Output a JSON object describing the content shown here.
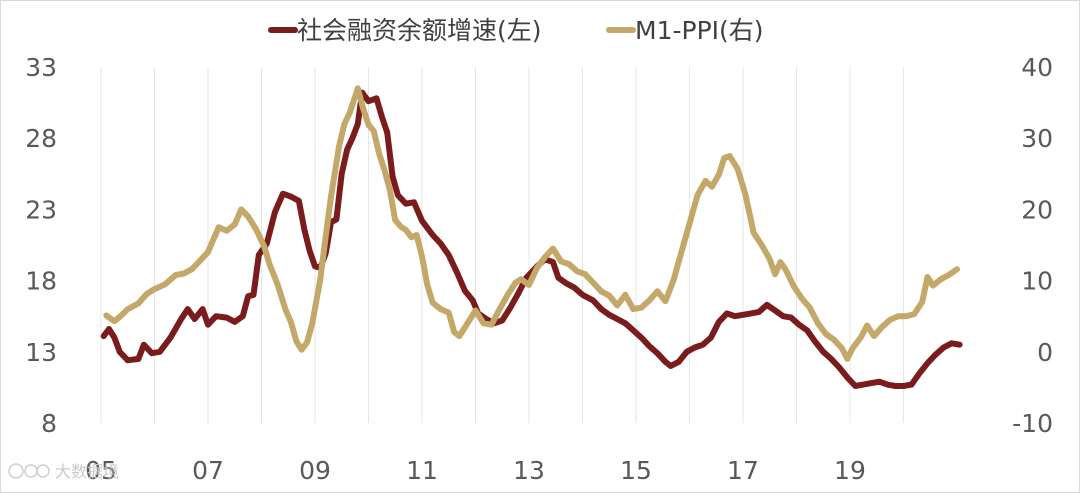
{
  "chart_data": {
    "type": "line",
    "title": "",
    "xlabel": "",
    "ylabel_left": "",
    "ylabel_right": "",
    "x_tick_labels": [
      "05",
      "07",
      "09",
      "11",
      "13",
      "15",
      "17",
      "19"
    ],
    "x_range": [
      2005.0,
      2021.3
    ],
    "y_left": {
      "ticks": [
        8,
        13,
        18,
        23,
        28,
        33
      ],
      "range": [
        8,
        33
      ]
    },
    "y_right": {
      "ticks": [
        -10,
        0,
        10,
        20,
        30,
        40
      ],
      "range": [
        -10,
        40
      ]
    },
    "grid": {
      "vertical": true,
      "horizontal": false
    },
    "legend_position": "top-center",
    "series": [
      {
        "name": "社会融资余额增速(左)",
        "axis": "left",
        "color": "#7b1c1c",
        "points": [
          [
            2005.05,
            14.1
          ],
          [
            2005.15,
            14.6
          ],
          [
            2005.25,
            14.0
          ],
          [
            2005.35,
            13.0
          ],
          [
            2005.5,
            12.4
          ],
          [
            2005.7,
            12.5
          ],
          [
            2005.8,
            13.5
          ],
          [
            2005.95,
            12.9
          ],
          [
            2006.1,
            13.0
          ],
          [
            2006.3,
            14.0
          ],
          [
            2006.5,
            15.3
          ],
          [
            2006.62,
            16.0
          ],
          [
            2006.75,
            15.3
          ],
          [
            2006.9,
            16.0
          ],
          [
            2007.0,
            14.9
          ],
          [
            2007.15,
            15.5
          ],
          [
            2007.35,
            15.4
          ],
          [
            2007.5,
            15.1
          ],
          [
            2007.65,
            15.5
          ],
          [
            2007.75,
            16.9
          ],
          [
            2007.85,
            17.0
          ],
          [
            2007.95,
            19.8
          ],
          [
            2008.1,
            20.6
          ],
          [
            2008.25,
            22.8
          ],
          [
            2008.4,
            24.1
          ],
          [
            2008.55,
            23.9
          ],
          [
            2008.7,
            23.6
          ],
          [
            2008.8,
            21.6
          ],
          [
            2008.9,
            20.1
          ],
          [
            2009.0,
            19.0
          ],
          [
            2009.1,
            18.9
          ],
          [
            2009.2,
            19.9
          ],
          [
            2009.3,
            22.1
          ],
          [
            2009.4,
            22.3
          ],
          [
            2009.5,
            25.5
          ],
          [
            2009.6,
            27.2
          ],
          [
            2009.7,
            28.0
          ],
          [
            2009.8,
            29.0
          ],
          [
            2009.88,
            31.2
          ],
          [
            2010.0,
            30.6
          ],
          [
            2010.15,
            30.8
          ],
          [
            2010.25,
            29.5
          ],
          [
            2010.35,
            28.4
          ],
          [
            2010.45,
            25.3
          ],
          [
            2010.55,
            24.0
          ],
          [
            2010.7,
            23.4
          ],
          [
            2010.85,
            23.5
          ],
          [
            2011.0,
            22.2
          ],
          [
            2011.2,
            21.2
          ],
          [
            2011.35,
            20.6
          ],
          [
            2011.5,
            19.8
          ],
          [
            2011.65,
            18.6
          ],
          [
            2011.8,
            17.3
          ],
          [
            2011.95,
            16.6
          ],
          [
            2012.05,
            15.7
          ],
          [
            2012.2,
            15.3
          ],
          [
            2012.35,
            15.0
          ],
          [
            2012.5,
            15.2
          ],
          [
            2012.65,
            16.1
          ],
          [
            2012.8,
            17.1
          ],
          [
            2012.95,
            18.2
          ],
          [
            2013.15,
            19.0
          ],
          [
            2013.3,
            19.5
          ],
          [
            2013.45,
            19.3
          ],
          [
            2013.55,
            18.2
          ],
          [
            2013.7,
            17.8
          ],
          [
            2013.85,
            17.5
          ],
          [
            2014.0,
            17.0
          ],
          [
            2014.2,
            16.6
          ],
          [
            2014.35,
            16.0
          ],
          [
            2014.5,
            15.6
          ],
          [
            2014.65,
            15.3
          ],
          [
            2014.8,
            15.0
          ],
          [
            2014.95,
            14.5
          ],
          [
            2015.1,
            14.0
          ],
          [
            2015.25,
            13.4
          ],
          [
            2015.4,
            12.9
          ],
          [
            2015.55,
            12.3
          ],
          [
            2015.65,
            12.0
          ],
          [
            2015.8,
            12.3
          ],
          [
            2015.95,
            13.0
          ],
          [
            2016.1,
            13.3
          ],
          [
            2016.25,
            13.5
          ],
          [
            2016.4,
            14.0
          ],
          [
            2016.55,
            15.1
          ],
          [
            2016.7,
            15.7
          ],
          [
            2016.85,
            15.5
          ],
          [
            2017.0,
            15.6
          ],
          [
            2017.15,
            15.7
          ],
          [
            2017.3,
            15.8
          ],
          [
            2017.45,
            16.3
          ],
          [
            2017.6,
            15.9
          ],
          [
            2017.75,
            15.5
          ],
          [
            2017.9,
            15.4
          ],
          [
            2018.05,
            14.9
          ],
          [
            2018.2,
            14.5
          ],
          [
            2018.35,
            13.7
          ],
          [
            2018.5,
            13.0
          ],
          [
            2018.65,
            12.5
          ],
          [
            2018.8,
            11.9
          ],
          [
            2018.95,
            11.2
          ],
          [
            2019.1,
            10.6
          ],
          [
            2019.25,
            10.7
          ],
          [
            2019.4,
            10.8
          ],
          [
            2019.55,
            10.9
          ],
          [
            2019.7,
            10.7
          ],
          [
            2019.85,
            10.6
          ],
          [
            2020.0,
            10.6
          ],
          [
            2020.15,
            10.7
          ],
          [
            2020.3,
            11.5
          ],
          [
            2020.45,
            12.2
          ],
          [
            2020.6,
            12.8
          ],
          [
            2020.75,
            13.3
          ],
          [
            2020.9,
            13.6
          ],
          [
            2021.05,
            13.5
          ]
        ]
      },
      {
        "name": "M1-PPI(右)",
        "axis": "right",
        "color": "#c4a86a",
        "points": [
          [
            2005.1,
            5.1
          ],
          [
            2005.25,
            4.3
          ],
          [
            2005.35,
            4.9
          ],
          [
            2005.5,
            6.0
          ],
          [
            2005.7,
            6.8
          ],
          [
            2005.85,
            8.1
          ],
          [
            2006.0,
            8.8
          ],
          [
            2006.2,
            9.5
          ],
          [
            2006.4,
            10.8
          ],
          [
            2006.55,
            11.0
          ],
          [
            2006.7,
            11.6
          ],
          [
            2006.85,
            12.8
          ],
          [
            2007.0,
            14.0
          ],
          [
            2007.2,
            17.5
          ],
          [
            2007.35,
            17.0
          ],
          [
            2007.5,
            17.9
          ],
          [
            2007.62,
            20.0
          ],
          [
            2007.75,
            19.0
          ],
          [
            2007.9,
            17.2
          ],
          [
            2008.05,
            14.8
          ],
          [
            2008.15,
            12.3
          ],
          [
            2008.3,
            9.5
          ],
          [
            2008.45,
            5.9
          ],
          [
            2008.55,
            4.2
          ],
          [
            2008.65,
            1.5
          ],
          [
            2008.75,
            0.3
          ],
          [
            2008.85,
            1.3
          ],
          [
            2008.95,
            4.0
          ],
          [
            2009.1,
            10.2
          ],
          [
            2009.2,
            16.2
          ],
          [
            2009.3,
            21.8
          ],
          [
            2009.45,
            28.9
          ],
          [
            2009.55,
            32.0
          ],
          [
            2009.65,
            33.6
          ],
          [
            2009.8,
            37.0
          ],
          [
            2009.9,
            34.2
          ],
          [
            2010.0,
            31.9
          ],
          [
            2010.1,
            31.0
          ],
          [
            2010.2,
            27.8
          ],
          [
            2010.3,
            25.5
          ],
          [
            2010.4,
            22.7
          ],
          [
            2010.5,
            18.5
          ],
          [
            2010.6,
            17.6
          ],
          [
            2010.7,
            17.1
          ],
          [
            2010.8,
            16.1
          ],
          [
            2010.9,
            16.4
          ],
          [
            2011.0,
            13.4
          ],
          [
            2011.1,
            9.4
          ],
          [
            2011.2,
            6.9
          ],
          [
            2011.35,
            6.0
          ],
          [
            2011.5,
            5.5
          ],
          [
            2011.6,
            2.8
          ],
          [
            2011.7,
            2.2
          ],
          [
            2011.85,
            4.0
          ],
          [
            2012.0,
            5.8
          ],
          [
            2012.15,
            4.0
          ],
          [
            2012.3,
            3.8
          ],
          [
            2012.45,
            6.0
          ],
          [
            2012.6,
            8.0
          ],
          [
            2012.75,
            9.7
          ],
          [
            2012.85,
            10.2
          ],
          [
            2013.0,
            9.4
          ],
          [
            2013.15,
            11.8
          ],
          [
            2013.3,
            13.3
          ],
          [
            2013.45,
            14.5
          ],
          [
            2013.6,
            12.7
          ],
          [
            2013.75,
            12.3
          ],
          [
            2013.9,
            11.3
          ],
          [
            2014.05,
            10.9
          ],
          [
            2014.2,
            9.7
          ],
          [
            2014.35,
            8.5
          ],
          [
            2014.5,
            7.9
          ],
          [
            2014.65,
            6.5
          ],
          [
            2014.8,
            8.0
          ],
          [
            2014.95,
            6.0
          ],
          [
            2015.1,
            6.2
          ],
          [
            2015.25,
            7.2
          ],
          [
            2015.4,
            8.5
          ],
          [
            2015.55,
            7.1
          ],
          [
            2015.7,
            10.0
          ],
          [
            2015.85,
            14.0
          ],
          [
            2016.0,
            18.0
          ],
          [
            2016.15,
            22.0
          ],
          [
            2016.3,
            24.0
          ],
          [
            2016.42,
            23.2
          ],
          [
            2016.55,
            24.9
          ],
          [
            2016.65,
            27.2
          ],
          [
            2016.75,
            27.5
          ],
          [
            2016.9,
            25.7
          ],
          [
            2017.05,
            22.0
          ],
          [
            2017.2,
            16.7
          ],
          [
            2017.35,
            15.0
          ],
          [
            2017.5,
            13.0
          ],
          [
            2017.6,
            10.9
          ],
          [
            2017.7,
            12.6
          ],
          [
            2017.8,
            11.5
          ],
          [
            2017.95,
            9.2
          ],
          [
            2018.1,
            7.5
          ],
          [
            2018.25,
            6.2
          ],
          [
            2018.4,
            4.0
          ],
          [
            2018.55,
            2.5
          ],
          [
            2018.7,
            1.7
          ],
          [
            2018.85,
            0.5
          ],
          [
            2018.95,
            -1.0
          ],
          [
            2019.05,
            0.5
          ],
          [
            2019.2,
            2.0
          ],
          [
            2019.32,
            3.7
          ],
          [
            2019.45,
            2.2
          ],
          [
            2019.6,
            3.5
          ],
          [
            2019.75,
            4.5
          ],
          [
            2019.9,
            5.0
          ],
          [
            2020.05,
            5.0
          ],
          [
            2020.2,
            5.3
          ],
          [
            2020.35,
            7.0
          ],
          [
            2020.45,
            10.5
          ],
          [
            2020.55,
            9.3
          ],
          [
            2020.7,
            10.2
          ],
          [
            2020.85,
            10.8
          ],
          [
            2021.0,
            11.6
          ]
        ]
      }
    ]
  },
  "watermark": "大数据境"
}
